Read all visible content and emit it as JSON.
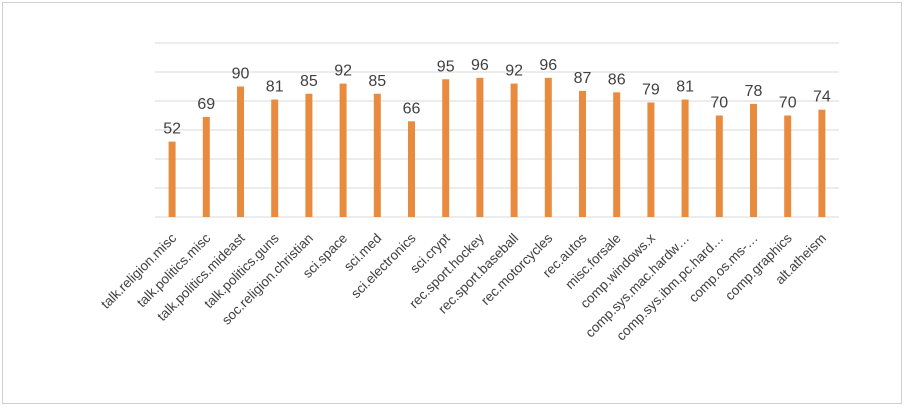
{
  "chart_data": {
    "type": "bar",
    "title": "",
    "xlabel": "",
    "ylabel": "",
    "ylim": [
      0,
      120
    ],
    "grid": true,
    "legend": "none",
    "bar_color": "#e98b3f",
    "categories": [
      "talk.religion.misc",
      "talk.politics.misc",
      "talk.politics.mideast",
      "talk.politics.guns",
      "soc.religion.christian",
      "sci.space",
      "sci.med",
      "sci.electronics",
      "sci.crypt",
      "rec.sport.hockey",
      "rec.sport.baseball",
      "rec.motorcycles",
      "rec.autos",
      "misc.forsale",
      "comp.windows.x",
      "comp.sys.mac.hardw…",
      "comp.sys.ibm.pc.hard…",
      "comp.os.ms-…",
      "comp.graphics",
      "alt.atheism"
    ],
    "values": [
      52,
      69,
      90,
      81,
      85,
      92,
      85,
      66,
      95,
      96,
      92,
      96,
      87,
      86,
      79,
      81,
      70,
      78,
      70,
      74
    ]
  }
}
